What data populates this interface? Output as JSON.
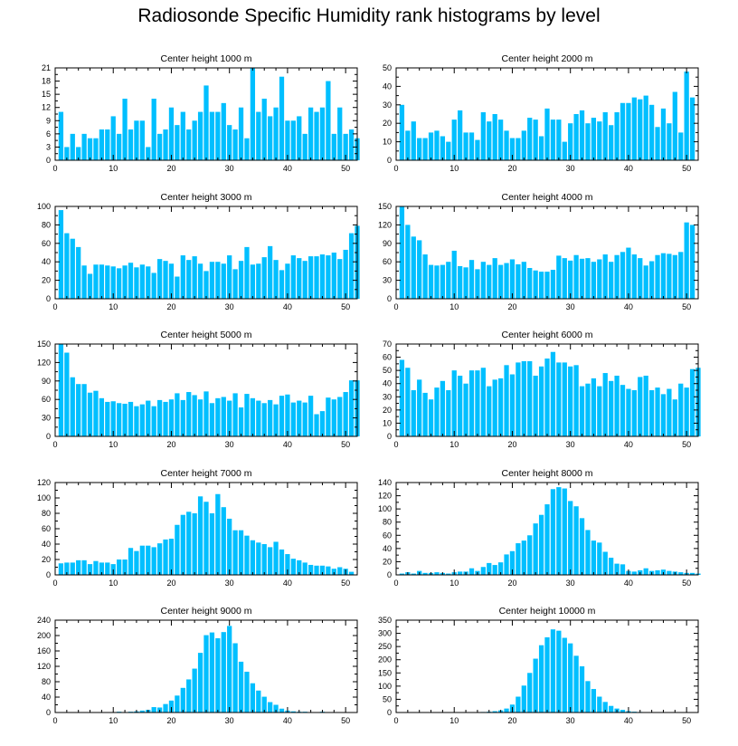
{
  "title": "Radiosonde Specific Humidity rank histograms by level",
  "bar_color": "#00bfff",
  "chart_data": [
    {
      "type": "bar",
      "title": "Center height 1000 m",
      "x_ticks": [
        0,
        10,
        20,
        30,
        40,
        50
      ],
      "y_ticks": [
        0,
        3,
        6,
        9,
        12,
        15,
        18,
        21
      ],
      "ylim": [
        0,
        21
      ],
      "xlim": [
        0,
        52
      ],
      "values": [
        11,
        3,
        6,
        3,
        6,
        5,
        5,
        7,
        7,
        10,
        6,
        14,
        7,
        9,
        9,
        3,
        14,
        6,
        7,
        12,
        8,
        11,
        7,
        9,
        11,
        17,
        11,
        11,
        13,
        8,
        7,
        12,
        5,
        21,
        11,
        14,
        10,
        12,
        19,
        9,
        9,
        10,
        6,
        12,
        11,
        12,
        18,
        6,
        12,
        6,
        7,
        5
      ]
    },
    {
      "type": "bar",
      "title": "Center height 2000 m",
      "x_ticks": [
        0,
        10,
        20,
        30,
        40,
        50
      ],
      "y_ticks": [
        0,
        10,
        20,
        30,
        40,
        50
      ],
      "ylim": [
        0,
        50
      ],
      "xlim": [
        0,
        52
      ],
      "values": [
        30,
        16,
        21,
        12,
        12,
        15,
        16,
        13,
        10,
        22,
        27,
        15,
        15,
        11,
        26,
        21,
        25,
        22,
        16,
        12,
        12,
        16,
        23,
        22,
        13,
        28,
        22,
        22,
        10,
        20,
        25,
        27,
        20,
        23,
        21,
        26,
        19,
        26,
        31,
        31,
        34,
        33,
        35,
        30,
        18,
        28,
        20,
        37,
        15,
        48,
        34
      ]
    },
    {
      "type": "bar",
      "title": "Center height 3000 m",
      "x_ticks": [
        0,
        10,
        20,
        30,
        40,
        50
      ],
      "y_ticks": [
        0,
        20,
        40,
        60,
        80,
        100
      ],
      "ylim": [
        0,
        100
      ],
      "xlim": [
        0,
        52
      ],
      "values": [
        96,
        71,
        65,
        56,
        36,
        27,
        37,
        37,
        36,
        35,
        33,
        36,
        39,
        34,
        37,
        35,
        28,
        43,
        41,
        38,
        24,
        47,
        42,
        46,
        38,
        30,
        40,
        40,
        38,
        47,
        32,
        41,
        56,
        37,
        38,
        45,
        57,
        42,
        31,
        38,
        47,
        44,
        41,
        46,
        46,
        48,
        47,
        50,
        43,
        53,
        71,
        79
      ]
    },
    {
      "type": "bar",
      "title": "Center height 4000 m",
      "x_ticks": [
        0,
        10,
        20,
        30,
        40,
        50
      ],
      "y_ticks": [
        0,
        30,
        60,
        90,
        120,
        150
      ],
      "ylim": [
        0,
        150
      ],
      "xlim": [
        0,
        52
      ],
      "values": [
        150,
        120,
        101,
        95,
        72,
        55,
        54,
        55,
        60,
        78,
        53,
        51,
        63,
        48,
        60,
        55,
        66,
        55,
        58,
        64,
        56,
        60,
        50,
        46,
        44,
        44,
        47,
        70,
        66,
        62,
        71,
        65,
        66,
        60,
        64,
        72,
        60,
        71,
        76,
        83,
        72,
        66,
        54,
        61,
        71,
        74,
        73,
        71,
        76,
        124,
        120
      ]
    },
    {
      "type": "bar",
      "title": "Center height 5000 m",
      "x_ticks": [
        0,
        10,
        20,
        30,
        40,
        50
      ],
      "y_ticks": [
        0,
        30,
        60,
        90,
        120,
        150
      ],
      "ylim": [
        0,
        150
      ],
      "xlim": [
        0,
        52
      ],
      "values": [
        150,
        136,
        96,
        85,
        85,
        71,
        74,
        62,
        56,
        57,
        54,
        53,
        56,
        49,
        52,
        58,
        49,
        59,
        56,
        60,
        70,
        59,
        72,
        67,
        60,
        73,
        54,
        62,
        64,
        58,
        70,
        47,
        69,
        62,
        58,
        54,
        59,
        52,
        66,
        68,
        55,
        58,
        55,
        66,
        36,
        41,
        63,
        60,
        64,
        72,
        91,
        91
      ]
    },
    {
      "type": "bar",
      "title": "Center height 6000 m",
      "x_ticks": [
        0,
        10,
        20,
        30,
        40,
        50
      ],
      "y_ticks": [
        0,
        10,
        20,
        30,
        40,
        50,
        60,
        70
      ],
      "ylim": [
        0,
        70
      ],
      "xlim": [
        0,
        52
      ],
      "values": [
        58,
        52,
        35,
        43,
        33,
        28,
        37,
        42,
        35,
        50,
        46,
        40,
        50,
        50,
        52,
        38,
        43,
        44,
        54,
        47,
        56,
        57,
        57,
        46,
        53,
        59,
        64,
        56,
        56,
        53,
        54,
        38,
        40,
        44,
        38,
        48,
        42,
        46,
        39,
        36,
        35,
        45,
        46,
        35,
        37,
        32,
        36,
        28,
        40,
        37,
        51,
        52
      ]
    },
    {
      "type": "bar",
      "title": "Center height 7000 m",
      "x_ticks": [
        0,
        10,
        20,
        30,
        40,
        50
      ],
      "y_ticks": [
        0,
        20,
        40,
        60,
        80,
        100,
        120
      ],
      "ylim": [
        0,
        120
      ],
      "xlim": [
        0,
        52
      ],
      "values": [
        15,
        16,
        16,
        19,
        19,
        14,
        18,
        16,
        16,
        14,
        20,
        20,
        35,
        31,
        38,
        38,
        36,
        41,
        46,
        47,
        65,
        78,
        82,
        80,
        102,
        95,
        80,
        105,
        88,
        73,
        58,
        58,
        51,
        45,
        42,
        40,
        36,
        43,
        33,
        27,
        21,
        19,
        16,
        13,
        12,
        12,
        11,
        8,
        10,
        8,
        4
      ]
    },
    {
      "type": "bar",
      "title": "Center height 8000 m",
      "x_ticks": [
        0,
        10,
        20,
        30,
        40,
        50
      ],
      "y_ticks": [
        0,
        20,
        40,
        60,
        80,
        100,
        120,
        140
      ],
      "ylim": [
        0,
        140
      ],
      "xlim": [
        0,
        52
      ],
      "values": [
        2,
        4,
        2,
        6,
        3,
        3,
        4,
        3,
        2,
        4,
        5,
        5,
        10,
        6,
        12,
        18,
        15,
        19,
        31,
        36,
        48,
        52,
        60,
        78,
        91,
        107,
        130,
        133,
        131,
        112,
        104,
        86,
        68,
        52,
        49,
        35,
        26,
        17,
        16,
        6,
        5,
        7,
        10,
        6,
        7,
        8,
        6,
        5,
        4,
        3,
        3,
        2
      ]
    },
    {
      "type": "bar",
      "title": "Center height 9000 m",
      "x_ticks": [
        0,
        10,
        20,
        30,
        40,
        50
      ],
      "y_ticks": [
        0,
        40,
        80,
        120,
        160,
        200,
        240
      ],
      "ylim": [
        0,
        240
      ],
      "xlim": [
        0,
        52
      ],
      "values": [
        0,
        0,
        0,
        0,
        1,
        0,
        0,
        0,
        1,
        0,
        2,
        0,
        2,
        3,
        5,
        7,
        14,
        13,
        22,
        31,
        44,
        64,
        86,
        114,
        155,
        201,
        208,
        193,
        209,
        225,
        180,
        132,
        106,
        76,
        57,
        41,
        27,
        20,
        10,
        5,
        3,
        2,
        2,
        1,
        1,
        2,
        0,
        1,
        1,
        1,
        0,
        0
      ]
    },
    {
      "type": "bar",
      "title": "Center height 10000 m",
      "x_ticks": [
        0,
        10,
        20,
        30,
        40,
        50
      ],
      "y_ticks": [
        0,
        50,
        100,
        150,
        200,
        250,
        300,
        350
      ],
      "ylim": [
        0,
        350
      ],
      "xlim": [
        0,
        52
      ],
      "values": [
        0,
        0,
        0,
        0,
        0,
        0,
        0,
        0,
        0,
        0,
        0,
        0,
        0,
        1,
        2,
        3,
        5,
        8,
        15,
        30,
        60,
        102,
        150,
        204,
        255,
        285,
        315,
        310,
        283,
        262,
        215,
        175,
        119,
        89,
        60,
        40,
        25,
        15,
        10,
        5,
        3,
        2,
        1,
        1,
        0,
        0,
        0,
        0,
        0,
        0,
        0,
        0
      ]
    }
  ]
}
